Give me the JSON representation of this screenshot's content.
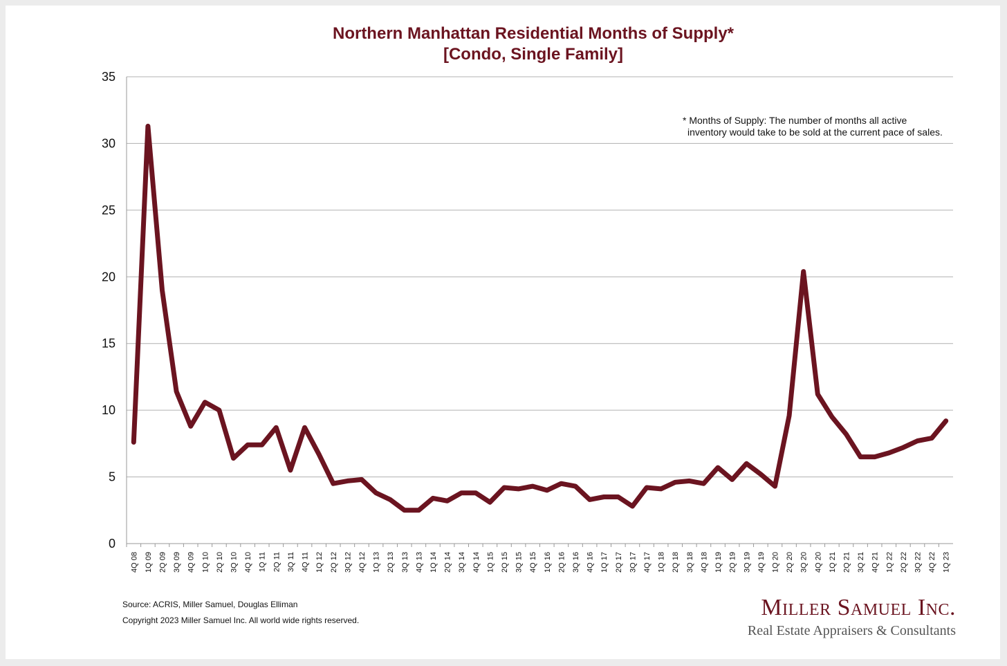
{
  "chart_data": {
    "type": "line",
    "title": "Northern Manhattan Residential Months of Supply*",
    "subtitle": "[Condo, Single Family]",
    "xlabel": "",
    "ylabel": "",
    "ylim": [
      0,
      35
    ],
    "yticks": [
      0,
      5,
      10,
      15,
      20,
      25,
      30,
      35
    ],
    "grid": true,
    "legend": "none",
    "categories": [
      "4Q 08",
      "1Q 09",
      "2Q 09",
      "3Q 09",
      "4Q 09",
      "1Q 10",
      "2Q 10",
      "3Q 10",
      "4Q 10",
      "1Q 11",
      "2Q 11",
      "3Q 11",
      "4Q 11",
      "1Q 12",
      "2Q 12",
      "3Q 12",
      "4Q 12",
      "1Q 13",
      "2Q 13",
      "3Q 13",
      "4Q 13",
      "1Q 14",
      "2Q 14",
      "3Q 14",
      "4Q 14",
      "1Q 15",
      "2Q 15",
      "3Q 15",
      "4Q 15",
      "1Q 16",
      "2Q 16",
      "3Q 16",
      "4Q 16",
      "1Q 17",
      "2Q 17",
      "3Q 17",
      "4Q 17",
      "1Q 18",
      "2Q 18",
      "3Q 18",
      "4Q 18",
      "1Q 19",
      "2Q 19",
      "3Q 19",
      "4Q 19",
      "1Q 20",
      "2Q 20",
      "3Q 20",
      "4Q 20",
      "1Q 21",
      "2Q 21",
      "3Q 21",
      "4Q 21",
      "1Q 22",
      "2Q 22",
      "3Q 22",
      "4Q 22",
      "1Q 23"
    ],
    "series": [
      {
        "name": "Months of Supply",
        "color": "#6b1420",
        "values": [
          7.6,
          31.3,
          19.0,
          11.4,
          8.8,
          10.6,
          10.0,
          6.4,
          7.4,
          7.4,
          8.7,
          5.5,
          8.7,
          6.7,
          4.5,
          4.7,
          4.8,
          3.8,
          3.3,
          2.5,
          2.5,
          3.4,
          3.2,
          3.8,
          3.8,
          3.1,
          4.2,
          4.1,
          4.3,
          4.0,
          4.5,
          4.3,
          3.3,
          3.5,
          3.5,
          2.8,
          4.2,
          4.1,
          4.6,
          4.7,
          4.5,
          5.7,
          4.8,
          6.0,
          5.2,
          4.3,
          9.6,
          20.4,
          11.2,
          9.5,
          8.2,
          6.5,
          6.5,
          6.8,
          7.2,
          7.7,
          7.9,
          9.2
        ]
      }
    ],
    "annotation": [
      "* Months of Supply: The number of months all active",
      "inventory would take to be sold at the current pace of sales."
    ]
  },
  "footer": {
    "source": "Source: ACRIS, Miller Samuel, Douglas Elliman",
    "copyright": "Copyright 2023 Miller Samuel Inc.  All world wide rights reserved."
  },
  "logo": {
    "name": "Miller Samuel Inc.",
    "tagline": "Real Estate Appraisers & Consultants"
  },
  "colors": {
    "line": "#6b1420",
    "title": "#6b1420",
    "grid": "#b0b0b0"
  }
}
